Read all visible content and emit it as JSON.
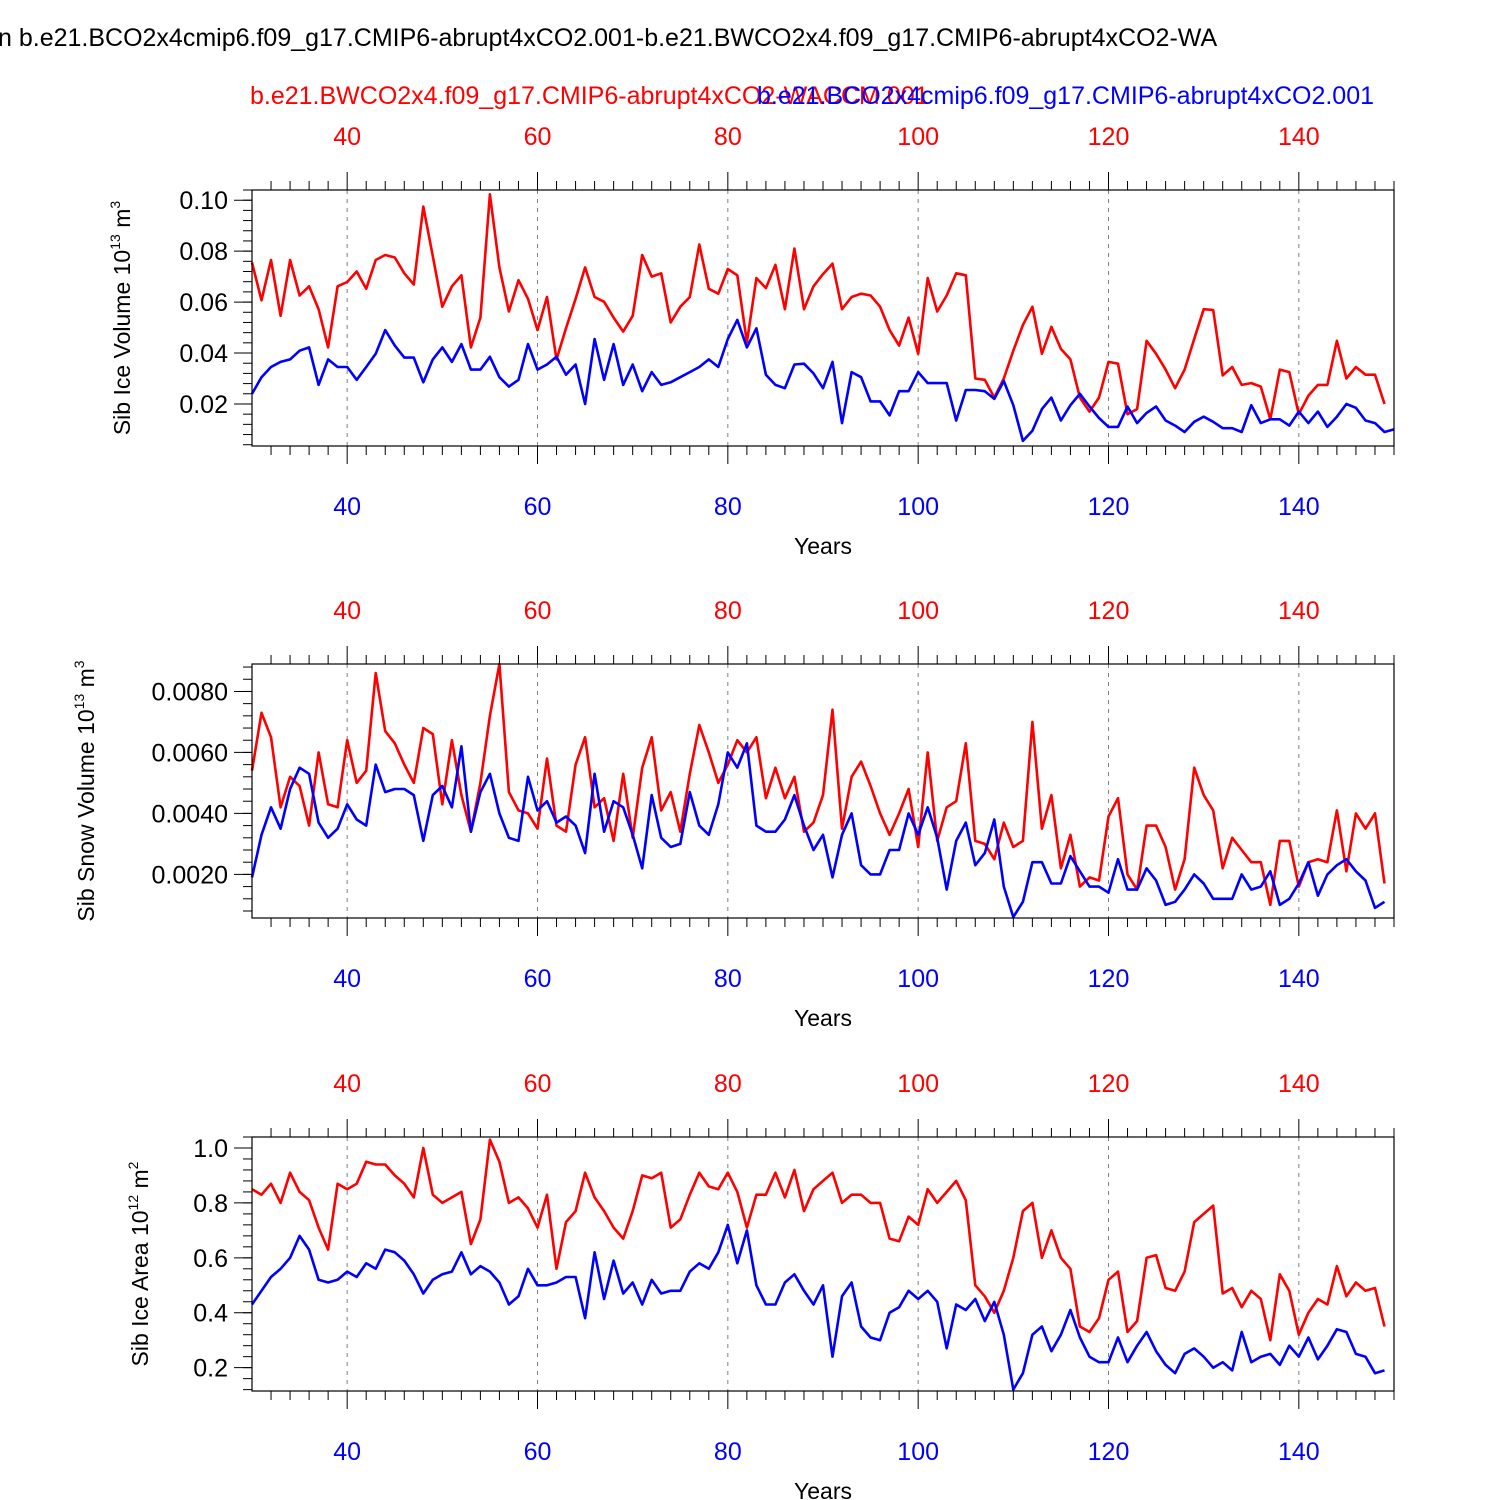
{
  "title": "n b.e21.BCO2x4cmip6.f09_g17.CMIP6-abrupt4xCO2.001-b.e21.BWCO2x4.f09_g17.CMIP6-abrupt4xCO2-WA",
  "series_labels": {
    "red": "b.e21.BWCO2x4.f09_g17.CMIP6-abrupt4xCO2-WACCM.001",
    "blue": "b.e21.BCO2x4cmip6.f09_g17.CMIP6-abrupt4xCO2.001"
  },
  "colors": {
    "red": "#ff0000",
    "blue": "#0000ff",
    "axis": "#000000",
    "grid": "#808080"
  },
  "chart_data": [
    {
      "type": "line",
      "ylabel": "Sib Ice Volume 10",
      "ylabel_exp": "13",
      "ylabel_unit": " m",
      "ylabel_unit_exp": "3",
      "xlabel": "Years",
      "xlim": [
        30,
        150
      ],
      "ylim": [
        0.0035,
        0.104
      ],
      "x_ticks": [
        40,
        60,
        80,
        100,
        120,
        140
      ],
      "y_ticks": [
        0.02,
        0.04,
        0.06,
        0.08,
        0.1
      ],
      "y_tick_labels": [
        "0.02",
        "0.04",
        "0.06",
        "0.08",
        "0.10"
      ],
      "y_minor_step": 0.004,
      "grid": "vertical dashed",
      "x_start": 30,
      "series": [
        {
          "name": "b.e21.BWCO2x4.f09_g17.CMIP6-abrupt4xCO2-WACCM.001",
          "color": "red",
          "values": [
            0.0755,
            0.0607,
            0.0765,
            0.0546,
            0.0765,
            0.0626,
            0.0662,
            0.0572,
            0.0422,
            0.0662,
            0.0679,
            0.072,
            0.0652,
            0.0765,
            0.0785,
            0.0775,
            0.0713,
            0.0669,
            0.0975,
            0.078,
            0.0582,
            0.0662,
            0.0705,
            0.0422,
            0.0539,
            0.1023,
            0.0736,
            0.0563,
            0.0686,
            0.0613,
            0.049,
            0.062,
            0.0375,
            0.0497,
            0.0613,
            0.0736,
            0.062,
            0.0601,
            0.0539,
            0.0484,
            0.0546,
            0.0785,
            0.07,
            0.0713,
            0.052,
            0.0582,
            0.062,
            0.0826,
            0.0652,
            0.0633,
            0.073,
            0.0705,
            0.0442,
            0.0694,
            0.0655,
            0.0746,
            0.0572,
            0.081,
            0.0572,
            0.0662,
            0.071,
            0.0751,
            0.0572,
            0.062,
            0.0633,
            0.0626,
            0.0582,
            0.049,
            0.0429,
            0.0539,
            0.0397,
            0.0694,
            0.0563,
            0.0626,
            0.0713,
            0.0705,
            0.03,
            0.0295,
            0.0225,
            0.03,
            0.0409,
            0.051,
            0.0582,
            0.0397,
            0.0503,
            0.0416,
            0.0375,
            0.0225,
            0.017,
            0.0225,
            0.0365,
            0.0358,
            0.016,
            0.018,
            0.0448,
            0.0397,
            0.0335,
            0.0262,
            0.0335,
            0.0455,
            0.0572,
            0.0569,
            0.0312,
            0.0345,
            0.0275,
            0.0282,
            0.0268,
            0.014,
            0.0335,
            0.0325,
            0.016,
            0.0233,
            0.0275,
            0.0275,
            0.0448,
            0.03,
            0.0345,
            0.0315,
            0.0315,
            0.02
          ]
        },
        {
          "name": "b.e21.BCO2x4cmip6.f09_g17.CMIP6-abrupt4xCO2.001",
          "color": "blue",
          "values": [
            0.024,
            0.0305,
            0.0345,
            0.0365,
            0.0375,
            0.0409,
            0.0422,
            0.0275,
            0.0375,
            0.0345,
            0.0345,
            0.0295,
            0.0345,
            0.0397,
            0.049,
            0.0429,
            0.0382,
            0.0382,
            0.0285,
            0.0375,
            0.0422,
            0.0365,
            0.0435,
            0.0335,
            0.0335,
            0.0385,
            0.0305,
            0.0268,
            0.0295,
            0.0435,
            0.0335,
            0.0355,
            0.0385,
            0.0315,
            0.0355,
            0.02,
            0.0455,
            0.0295,
            0.0435,
            0.0275,
            0.0355,
            0.025,
            0.0325,
            0.0275,
            0.0285,
            0.0305,
            0.0325,
            0.0345,
            0.0375,
            0.0345,
            0.0455,
            0.053,
            0.0422,
            0.0497,
            0.0315,
            0.0275,
            0.0262,
            0.0355,
            0.0358,
            0.032,
            0.0262,
            0.0365,
            0.0125,
            0.0325,
            0.0305,
            0.021,
            0.021,
            0.0155,
            0.025,
            0.025,
            0.0325,
            0.0282,
            0.0282,
            0.0282,
            0.0135,
            0.0255,
            0.0255,
            0.025,
            0.022,
            0.029,
            0.0195,
            0.0055,
            0.0095,
            0.018,
            0.0225,
            0.0135,
            0.0195,
            0.024,
            0.019,
            0.0145,
            0.011,
            0.011,
            0.019,
            0.0125,
            0.0165,
            0.019,
            0.0135,
            0.0115,
            0.009,
            0.013,
            0.015,
            0.013,
            0.0105,
            0.0105,
            0.009,
            0.0195,
            0.0125,
            0.014,
            0.014,
            0.0115,
            0.017,
            0.0125,
            0.017,
            0.011,
            0.015,
            0.02,
            0.0185,
            0.0135,
            0.0125,
            0.009,
            0.01
          ]
        }
      ]
    },
    {
      "type": "line",
      "ylabel": "Sib Snow Volume 10",
      "ylabel_exp": "13",
      "ylabel_unit": " m",
      "ylabel_unit_exp": "3",
      "xlabel": "Years",
      "xlim": [
        30,
        150
      ],
      "ylim": [
        0.00057,
        0.0089
      ],
      "x_ticks": [
        40,
        60,
        80,
        100,
        120,
        140
      ],
      "y_ticks": [
        0.002,
        0.004,
        0.006,
        0.008
      ],
      "y_tick_labels": [
        "0.0020",
        "0.0040",
        "0.0060",
        "0.0080"
      ],
      "y_minor_step": 0.0004,
      "grid": "vertical dashed",
      "x_start": 30,
      "series": [
        {
          "name": "b.e21.BWCO2x4.f09_g17.CMIP6-abrupt4xCO2-WACCM.001",
          "color": "red",
          "values": [
            0.0054,
            0.0073,
            0.0065,
            0.0042,
            0.0052,
            0.0049,
            0.0036,
            0.006,
            0.0043,
            0.0042,
            0.0064,
            0.005,
            0.0054,
            0.0086,
            0.0067,
            0.0063,
            0.0056,
            0.005,
            0.0068,
            0.0066,
            0.0043,
            0.0064,
            0.0046,
            0.0034,
            0.005,
            0.0072,
            0.0089,
            0.0047,
            0.0041,
            0.004,
            0.0035,
            0.0058,
            0.0036,
            0.0034,
            0.0056,
            0.0065,
            0.0042,
            0.0045,
            0.0031,
            0.0053,
            0.0032,
            0.0055,
            0.0065,
            0.0041,
            0.0047,
            0.0034,
            0.0053,
            0.0069,
            0.006,
            0.005,
            0.0056,
            0.0064,
            0.006,
            0.0065,
            0.0045,
            0.0055,
            0.0045,
            0.0052,
            0.0034,
            0.0037,
            0.0046,
            0.0074,
            0.0035,
            0.0052,
            0.0057,
            0.0049,
            0.004,
            0.0033,
            0.004,
            0.0048,
            0.0029,
            0.006,
            0.0031,
            0.0042,
            0.0044,
            0.0063,
            0.0031,
            0.003,
            0.0025,
            0.0037,
            0.0029,
            0.0031,
            0.007,
            0.0035,
            0.0046,
            0.0022,
            0.0033,
            0.0016,
            0.0019,
            0.0018,
            0.0039,
            0.0045,
            0.002,
            0.0015,
            0.0036,
            0.0036,
            0.0029,
            0.0015,
            0.0025,
            0.0055,
            0.0046,
            0.0041,
            0.0022,
            0.0032,
            0.0028,
            0.0024,
            0.0024,
            0.001,
            0.0031,
            0.0031,
            0.0016,
            0.0024,
            0.0025,
            0.0024,
            0.0041,
            0.0021,
            0.004,
            0.0035,
            0.004,
            0.0017
          ]
        },
        {
          "name": "b.e21.BCO2x4cmip6.f09_g17.CMIP6-abrupt4xCO2.001",
          "color": "blue",
          "values": [
            0.0019,
            0.0033,
            0.0042,
            0.0035,
            0.0048,
            0.0055,
            0.0053,
            0.0037,
            0.0032,
            0.0035,
            0.0043,
            0.0038,
            0.0036,
            0.0056,
            0.0047,
            0.0048,
            0.0048,
            0.0046,
            0.0031,
            0.0046,
            0.0049,
            0.0042,
            0.0062,
            0.0034,
            0.0047,
            0.0053,
            0.004,
            0.0032,
            0.0031,
            0.0052,
            0.0041,
            0.0044,
            0.0037,
            0.0039,
            0.0036,
            0.0027,
            0.0053,
            0.0034,
            0.0044,
            0.0042,
            0.0033,
            0.0022,
            0.0046,
            0.0032,
            0.0029,
            0.003,
            0.0047,
            0.0036,
            0.0033,
            0.0043,
            0.006,
            0.0055,
            0.0063,
            0.0036,
            0.0034,
            0.0034,
            0.0038,
            0.0046,
            0.0036,
            0.0028,
            0.0033,
            0.0019,
            0.0033,
            0.004,
            0.0023,
            0.002,
            0.002,
            0.0028,
            0.0028,
            0.004,
            0.0033,
            0.0042,
            0.0032,
            0.0015,
            0.0031,
            0.0037,
            0.0023,
            0.0027,
            0.0038,
            0.0016,
            0.0006,
            0.0011,
            0.0024,
            0.0024,
            0.0017,
            0.0017,
            0.0026,
            0.0021,
            0.0016,
            0.0016,
            0.0014,
            0.0025,
            0.0015,
            0.0015,
            0.0022,
            0.0018,
            0.001,
            0.0011,
            0.0015,
            0.002,
            0.0017,
            0.0012,
            0.0012,
            0.0012,
            0.002,
            0.0015,
            0.0016,
            0.0021,
            0.001,
            0.0012,
            0.0017,
            0.0024,
            0.0013,
            0.002,
            0.0023,
            0.0025,
            0.0021,
            0.0018,
            0.0009,
            0.0011
          ]
        }
      ]
    },
    {
      "type": "line",
      "ylabel": "Sib Ice Area 10",
      "ylabel_exp": "12",
      "ylabel_unit": " m",
      "ylabel_unit_exp": "2",
      "xlabel": "Years",
      "xlim": [
        30,
        150
      ],
      "ylim": [
        0.115,
        1.04
      ],
      "x_ticks": [
        40,
        60,
        80,
        100,
        120,
        140
      ],
      "y_ticks": [
        0.2,
        0.4,
        0.6,
        0.8,
        1.0
      ],
      "y_tick_labels": [
        "0.2",
        "0.4",
        "0.6",
        "0.8",
        "1.0"
      ],
      "y_minor_step": 0.04,
      "grid": "vertical dashed",
      "x_start": 30,
      "series": [
        {
          "name": "b.e21.BWCO2x4.f09_g17.CMIP6-abrupt4xCO2-WACCM.001",
          "color": "red",
          "values": [
            0.85,
            0.83,
            0.87,
            0.8,
            0.91,
            0.84,
            0.81,
            0.71,
            0.63,
            0.87,
            0.85,
            0.87,
            0.95,
            0.94,
            0.94,
            0.9,
            0.87,
            0.82,
            1.0,
            0.83,
            0.8,
            0.82,
            0.84,
            0.65,
            0.74,
            1.03,
            0.95,
            0.8,
            0.82,
            0.78,
            0.71,
            0.83,
            0.56,
            0.73,
            0.77,
            0.91,
            0.82,
            0.77,
            0.71,
            0.67,
            0.77,
            0.9,
            0.89,
            0.91,
            0.71,
            0.74,
            0.83,
            0.91,
            0.86,
            0.85,
            0.91,
            0.84,
            0.71,
            0.83,
            0.83,
            0.91,
            0.82,
            0.92,
            0.77,
            0.85,
            0.88,
            0.91,
            0.8,
            0.83,
            0.83,
            0.8,
            0.8,
            0.67,
            0.66,
            0.75,
            0.72,
            0.85,
            0.8,
            0.84,
            0.88,
            0.81,
            0.5,
            0.46,
            0.4,
            0.48,
            0.6,
            0.77,
            0.8,
            0.6,
            0.7,
            0.6,
            0.56,
            0.35,
            0.33,
            0.38,
            0.52,
            0.55,
            0.33,
            0.37,
            0.6,
            0.61,
            0.49,
            0.48,
            0.55,
            0.73,
            0.76,
            0.79,
            0.47,
            0.49,
            0.42,
            0.48,
            0.45,
            0.3,
            0.54,
            0.48,
            0.32,
            0.4,
            0.45,
            0.43,
            0.57,
            0.46,
            0.51,
            0.48,
            0.49,
            0.35
          ]
        },
        {
          "name": "b.e21.BCO2x4cmip6.f09_g17.CMIP6-abrupt4xCO2.001",
          "color": "blue",
          "values": [
            0.43,
            0.48,
            0.53,
            0.56,
            0.6,
            0.68,
            0.63,
            0.52,
            0.51,
            0.52,
            0.55,
            0.53,
            0.58,
            0.56,
            0.63,
            0.62,
            0.59,
            0.54,
            0.47,
            0.52,
            0.54,
            0.55,
            0.62,
            0.54,
            0.57,
            0.55,
            0.51,
            0.43,
            0.46,
            0.56,
            0.5,
            0.5,
            0.51,
            0.53,
            0.53,
            0.38,
            0.62,
            0.45,
            0.59,
            0.47,
            0.51,
            0.43,
            0.52,
            0.47,
            0.48,
            0.48,
            0.55,
            0.58,
            0.56,
            0.62,
            0.72,
            0.58,
            0.7,
            0.5,
            0.43,
            0.43,
            0.51,
            0.54,
            0.48,
            0.43,
            0.5,
            0.24,
            0.46,
            0.51,
            0.35,
            0.31,
            0.3,
            0.4,
            0.42,
            0.48,
            0.45,
            0.48,
            0.44,
            0.27,
            0.43,
            0.41,
            0.45,
            0.37,
            0.44,
            0.32,
            0.12,
            0.18,
            0.32,
            0.35,
            0.26,
            0.32,
            0.41,
            0.31,
            0.24,
            0.22,
            0.22,
            0.31,
            0.22,
            0.28,
            0.33,
            0.26,
            0.21,
            0.18,
            0.25,
            0.27,
            0.24,
            0.2,
            0.22,
            0.19,
            0.33,
            0.22,
            0.24,
            0.25,
            0.21,
            0.28,
            0.24,
            0.31,
            0.23,
            0.28,
            0.34,
            0.33,
            0.25,
            0.24,
            0.18,
            0.19
          ]
        }
      ]
    }
  ]
}
